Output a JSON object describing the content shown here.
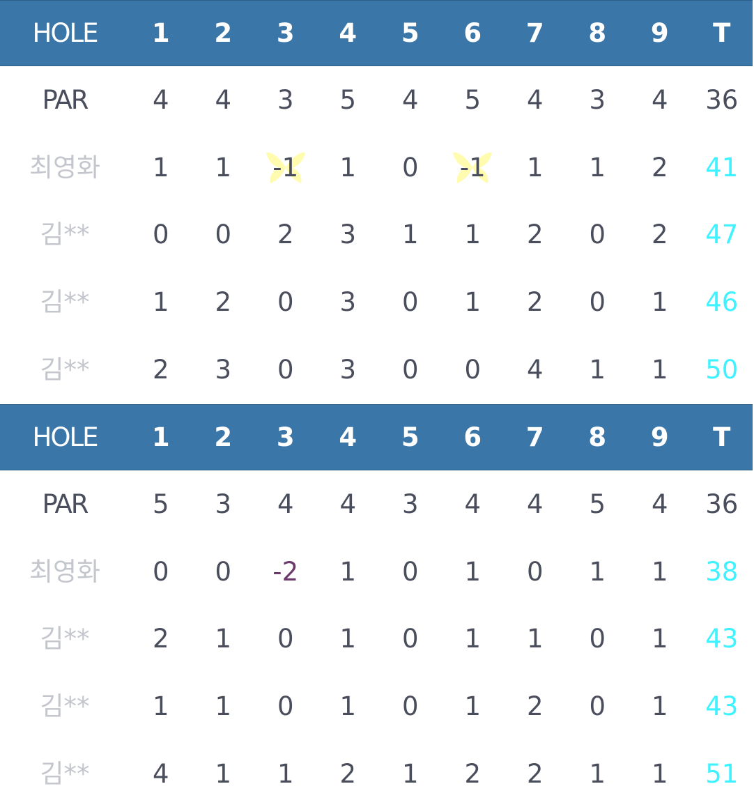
{
  "scorecards": [
    {
      "header": {
        "label": "HOLE",
        "holes": [
          "1",
          "2",
          "3",
          "4",
          "5",
          "6",
          "7",
          "8",
          "9"
        ],
        "total": "T"
      },
      "par": {
        "label": "PAR",
        "values": [
          "4",
          "4",
          "3",
          "5",
          "4",
          "5",
          "4",
          "3",
          "4"
        ],
        "total": "36"
      },
      "players": [
        {
          "name": "최영화",
          "scores": [
            "1",
            "1",
            "-1",
            "1",
            "0",
            "-1",
            "1",
            "1",
            "2"
          ],
          "total": "41"
        },
        {
          "name": "김**",
          "scores": [
            "0",
            "0",
            "2",
            "3",
            "1",
            "1",
            "2",
            "0",
            "2"
          ],
          "total": "47"
        },
        {
          "name": "김**",
          "scores": [
            "1",
            "2",
            "0",
            "3",
            "0",
            "1",
            "2",
            "0",
            "1"
          ],
          "total": "46"
        },
        {
          "name": "김**",
          "scores": [
            "2",
            "3",
            "0",
            "3",
            "0",
            "0",
            "4",
            "1",
            "1"
          ],
          "total": "50"
        }
      ]
    },
    {
      "header": {
        "label": "HOLE",
        "holes": [
          "1",
          "2",
          "3",
          "4",
          "5",
          "6",
          "7",
          "8",
          "9"
        ],
        "total": "T"
      },
      "par": {
        "label": "PAR",
        "values": [
          "5",
          "3",
          "4",
          "4",
          "3",
          "4",
          "4",
          "5",
          "4"
        ],
        "total": "36"
      },
      "players": [
        {
          "name": "최영화",
          "scores": [
            "0",
            "0",
            "-2",
            "1",
            "0",
            "1",
            "0",
            "1",
            "1"
          ],
          "total": "38"
        },
        {
          "name": "김**",
          "scores": [
            "2",
            "1",
            "0",
            "1",
            "0",
            "1",
            "1",
            "0",
            "1"
          ],
          "total": "43"
        },
        {
          "name": "김**",
          "scores": [
            "1",
            "1",
            "0",
            "1",
            "0",
            "1",
            "2",
            "0",
            "1"
          ],
          "total": "43"
        },
        {
          "name": "김**",
          "scores": [
            "4",
            "1",
            "1",
            "2",
            "1",
            "2",
            "2",
            "1",
            "1"
          ],
          "total": "51"
        }
      ]
    }
  ],
  "colors": {
    "header_bg": "#3b76a8",
    "header_text": "#ffffff",
    "score_text": "#4a4d5c",
    "name_text": "#c4c6cd",
    "total_text": "#3ef2ff",
    "eagle_text": "#6b3a6b",
    "birdie_mark": "#fffcb0"
  },
  "icons": {
    "birdie": "bird-icon"
  }
}
